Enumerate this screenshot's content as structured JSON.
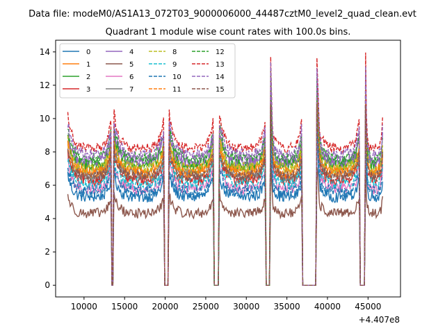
{
  "chart_data": {
    "type": "line",
    "suptitle": "Data file: modeM0/AS1A13_072T03_9000006000_44487cztM0_level2_quad_clean.evt",
    "title": "Quadrant 1 module wise count rates with 100.0s bins.",
    "xlabel": "",
    "ylabel": "",
    "x_offset_label": "+4.407e8",
    "xlim": [
      6500,
      49000
    ],
    "ylim": [
      -0.7,
      14.7
    ],
    "x_ticks": [
      10000,
      15000,
      20000,
      25000,
      30000,
      35000,
      40000,
      45000
    ],
    "x_tick_labels": [
      "10000",
      "15000",
      "20000",
      "25000",
      "30000",
      "35000",
      "40000",
      "45000"
    ],
    "y_ticks": [
      0,
      2,
      4,
      6,
      8,
      10,
      12,
      14
    ],
    "y_tick_labels": [
      "0",
      "2",
      "4",
      "6",
      "8",
      "10",
      "12",
      "14"
    ],
    "grid": false,
    "legend_position": "top-left",
    "legend_columns": 4,
    "time_windows": [
      [
        8000,
        13300
      ],
      [
        13700,
        19800
      ],
      [
        20500,
        25900
      ],
      [
        26700,
        32300
      ],
      [
        33000,
        36800
      ],
      [
        38700,
        43900
      ],
      [
        44700,
        46800
      ]
    ],
    "gap_drop_times": [
      13450,
      13550,
      20000,
      20300,
      26100,
      26500,
      32500,
      32800,
      37000,
      37500,
      38000,
      38400,
      44100,
      44500
    ],
    "series": [
      {
        "name": "0",
        "color": "#1f77b4",
        "dashed": false,
        "base": 5.3,
        "noise": 0.35
      },
      {
        "name": "1",
        "color": "#ff7f0e",
        "dashed": false,
        "base": 6.9,
        "noise": 0.35
      },
      {
        "name": "2",
        "color": "#2ca02c",
        "dashed": false,
        "base": 7.2,
        "noise": 0.35
      },
      {
        "name": "3",
        "color": "#d62728",
        "dashed": false,
        "base": 6.3,
        "noise": 0.35
      },
      {
        "name": "4",
        "color": "#9467bd",
        "dashed": false,
        "base": 7.4,
        "noise": 0.35
      },
      {
        "name": "5",
        "color": "#8c564b",
        "dashed": false,
        "base": 4.3,
        "noise": 0.3
      },
      {
        "name": "6",
        "color": "#e377c2",
        "dashed": false,
        "base": 5.8,
        "noise": 0.35
      },
      {
        "name": "7",
        "color": "#7f7f7f",
        "dashed": false,
        "base": 6.6,
        "noise": 0.35
      },
      {
        "name": "8",
        "color": "#bcbd22",
        "dashed": true,
        "base": 7.0,
        "noise": 0.35
      },
      {
        "name": "9",
        "color": "#17becf",
        "dashed": true,
        "base": 6.1,
        "noise": 0.35
      },
      {
        "name": "10",
        "color": "#1f77b4",
        "dashed": true,
        "base": 5.6,
        "noise": 0.35
      },
      {
        "name": "11",
        "color": "#ff7f0e",
        "dashed": true,
        "base": 6.7,
        "noise": 0.35
      },
      {
        "name": "12",
        "color": "#2ca02c",
        "dashed": true,
        "base": 7.6,
        "noise": 0.35
      },
      {
        "name": "13",
        "color": "#d62728",
        "dashed": true,
        "base": 8.2,
        "noise": 0.3
      },
      {
        "name": "14",
        "color": "#9467bd",
        "dashed": true,
        "base": 7.8,
        "noise": 0.35
      },
      {
        "name": "15",
        "color": "#8c564b",
        "dashed": true,
        "base": 6.5,
        "noise": 0.35
      }
    ]
  }
}
